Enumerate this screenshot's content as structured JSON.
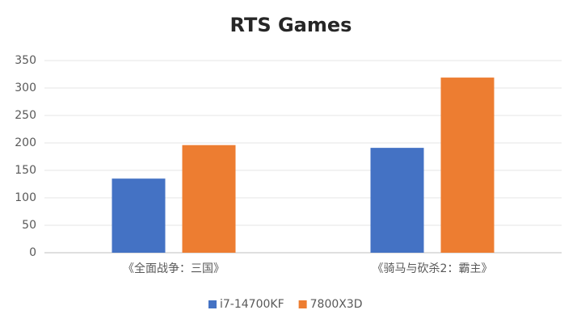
{
  "chart_data": {
    "type": "bar",
    "title": "RTS Games",
    "categories": [
      "《全面战争：三国》",
      "《骑马与砍杀2：霸主》"
    ],
    "series": [
      {
        "name": "i7-14700KF",
        "color": "#4472c4",
        "values": [
          135,
          191
        ]
      },
      {
        "name": "7800X3D",
        "color": "#ed7d31",
        "values": [
          196,
          319
        ]
      }
    ],
    "ylim": [
      0,
      350
    ],
    "yticks": [
      0,
      50,
      100,
      150,
      200,
      250,
      300,
      350
    ],
    "grid": true,
    "legend": "bottom"
  }
}
